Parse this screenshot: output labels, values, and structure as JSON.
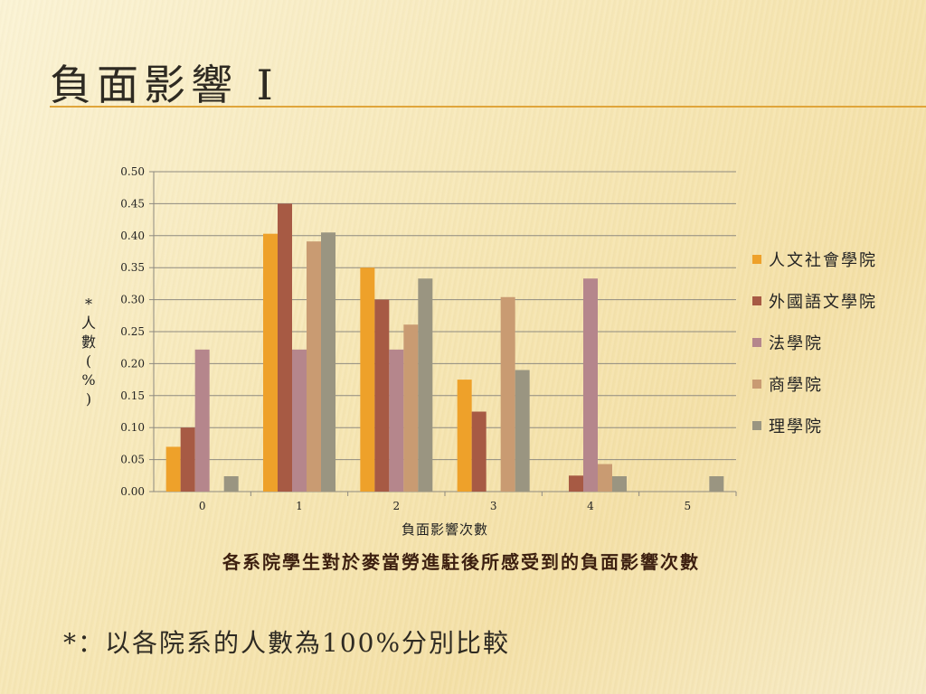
{
  "slide": {
    "title": "負面影響 I",
    "footnote": "*：以各院系的人數為100%分別比較"
  },
  "chart_data": {
    "type": "bar",
    "title": "各系院學生對於麥當勞進駐後所感受到的負面影響次數",
    "xlabel": "負面影響次數",
    "ylabel": "*人數(%)",
    "categories": [
      "0",
      "1",
      "2",
      "3",
      "4",
      "5"
    ],
    "ylim": [
      0,
      0.5
    ],
    "yticks": [
      "0.00",
      "0.05",
      "0.10",
      "0.15",
      "0.20",
      "0.25",
      "0.30",
      "0.35",
      "0.40",
      "0.45",
      "0.50"
    ],
    "grid": true,
    "legend_position": "right",
    "series": [
      {
        "name": "人文社會學院",
        "color": "#eea12a",
        "values": [
          0.07,
          0.403,
          0.35,
          0.175,
          0,
          0
        ]
      },
      {
        "name": "外國語文學院",
        "color": "#a75a44",
        "values": [
          0.1,
          0.45,
          0.3,
          0.125,
          0.025,
          0
        ]
      },
      {
        "name": "法學院",
        "color": "#b5868c",
        "values": [
          0.222,
          0.222,
          0.222,
          0,
          0.333,
          0
        ]
      },
      {
        "name": "商學院",
        "color": "#c99b72",
        "values": [
          0,
          0.391,
          0.261,
          0.304,
          0.043,
          0
        ]
      },
      {
        "name": "理學院",
        "color": "#9a9581",
        "values": [
          0.024,
          0.405,
          0.333,
          0.19,
          0.024,
          0.024
        ]
      }
    ]
  }
}
